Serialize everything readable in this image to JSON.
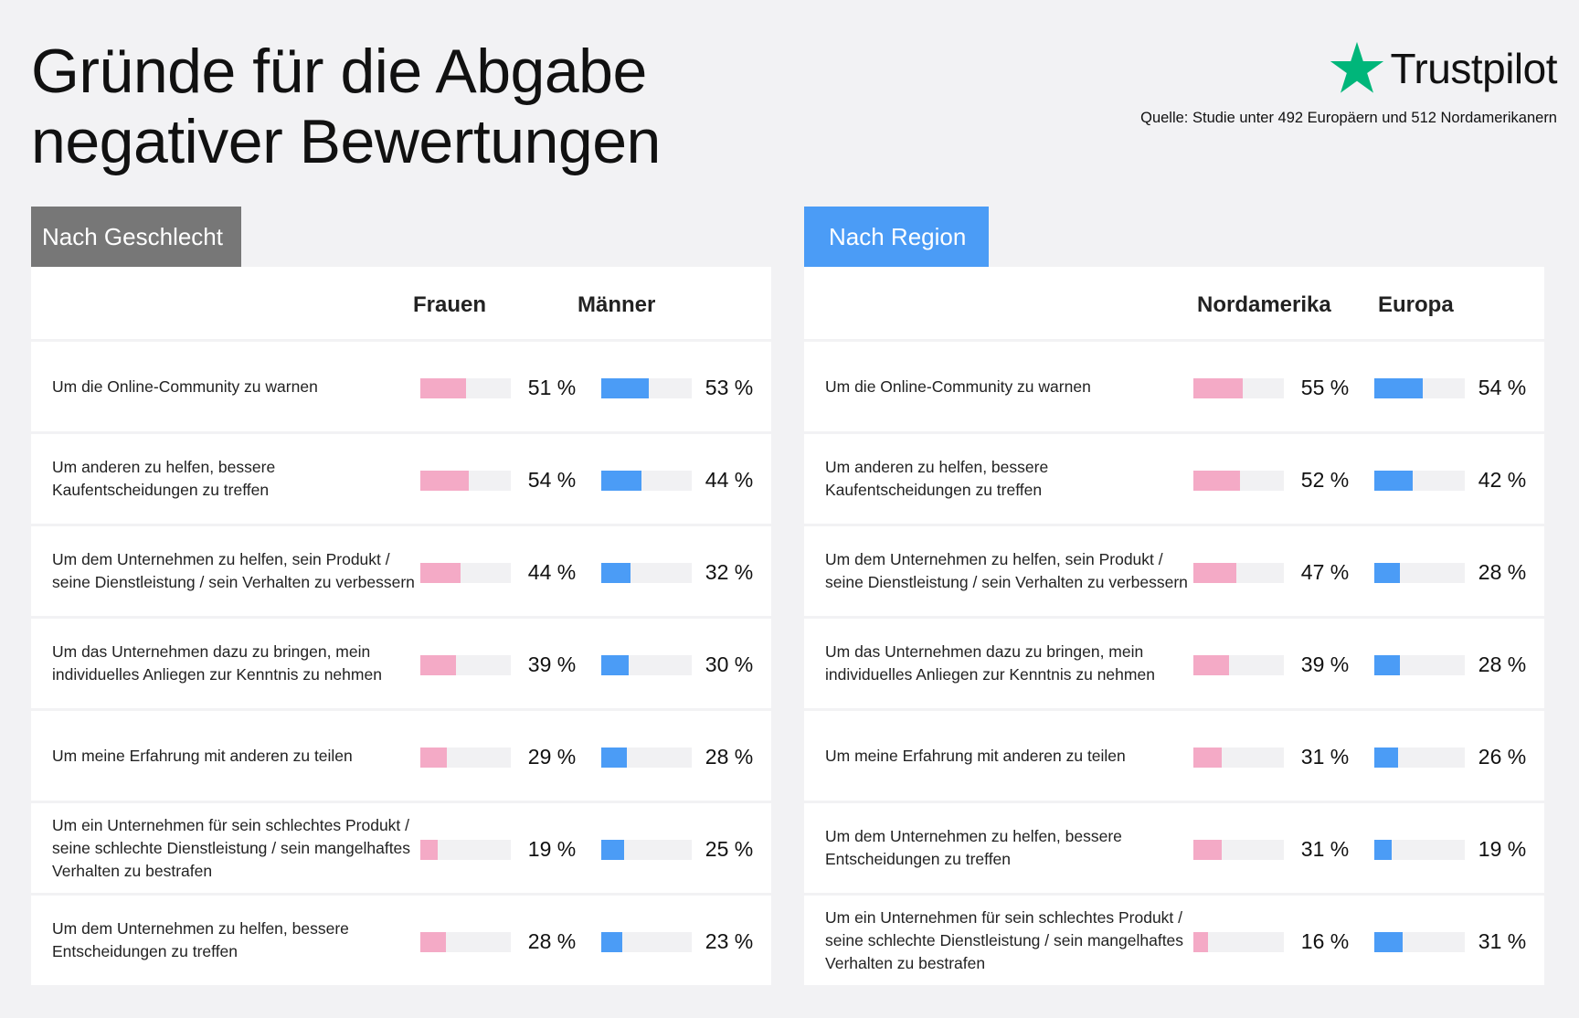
{
  "title": {
    "line1": "Gründe für die Abgabe",
    "line2": "negativer Bewertungen"
  },
  "brand": {
    "name": "Trustpilot",
    "star_color": "#00b67a",
    "source": "Quelle: Studie unter 492 Europäern und 512 Nordamerikanern"
  },
  "colors": {
    "pink": "#f4aac6",
    "blue": "#4b9cf6",
    "gray_tag": "#777777",
    "track": "#f1f1f3"
  },
  "chart_data": [
    {
      "type": "bar",
      "title": "Nach Geschlecht",
      "series": [
        {
          "name": "Frauen",
          "color": "pink",
          "values": [
            51,
            54,
            44,
            39,
            29,
            19,
            28
          ]
        },
        {
          "name": "Männer",
          "color": "blue",
          "values": [
            53,
            44,
            32,
            30,
            28,
            25,
            23
          ]
        }
      ],
      "unit": "%",
      "ylim": [
        0,
        100
      ],
      "categories": [
        "Um die Online-Community zu warnen",
        "Um anderen zu helfen, bessere Kaufentscheidungen zu treffen",
        "Um dem Unternehmen zu helfen, sein Produkt / seine Dienstleistung / sein Verhalten zu verbessern",
        "Um das Unternehmen dazu zu bringen, mein individuelles Anliegen zur Kenntnis zu nehmen",
        "Um meine Erfahrung mit anderen zu teilen",
        "Um ein Unternehmen für sein schlechtes Produkt / seine schlechte Dienstleistung / sein mangelhaftes Verhalten zu bestrafen",
        "Um dem Unternehmen zu helfen, bessere Entscheidungen zu treffen"
      ],
      "pct_labels": [
        [
          "51 %",
          "53 %"
        ],
        [
          "54 %",
          "44 %"
        ],
        [
          "44 %",
          "32 %"
        ],
        [
          "39 %",
          "30 %"
        ],
        [
          "29 %",
          "28 %"
        ],
        [
          "19 %",
          "25 %"
        ],
        [
          "28 %",
          "23 %"
        ]
      ]
    },
    {
      "type": "bar",
      "title": "Nach Region",
      "series": [
        {
          "name": "Nordamerika",
          "color": "pink",
          "values": [
            55,
            52,
            47,
            39,
            31,
            31,
            16
          ]
        },
        {
          "name": "Europa",
          "color": "blue",
          "values": [
            54,
            42,
            28,
            28,
            26,
            19,
            31
          ]
        }
      ],
      "unit": "%",
      "ylim": [
        0,
        100
      ],
      "categories": [
        "Um die Online-Community zu warnen",
        "Um anderen zu helfen, bessere Kaufentscheidungen zu treffen",
        "Um dem Unternehmen zu helfen, sein Produkt / seine Dienstleistung / sein Verhalten zu verbessern",
        "Um das Unternehmen dazu zu bringen, mein individuelles Anliegen zur Kenntnis zu nehmen",
        "Um meine Erfahrung mit anderen zu teilen",
        "Um dem Unternehmen zu helfen, bessere Entscheidungen zu treffen",
        "Um ein Unternehmen für sein schlechtes Produkt / seine schlechte Dienstleistung / sein mangelhaftes Verhalten zu bestrafen"
      ],
      "pct_labels": [
        [
          "55 %",
          "54 %"
        ],
        [
          "52 %",
          "42 %"
        ],
        [
          "47 %",
          "28 %"
        ],
        [
          "39 %",
          "28 %"
        ],
        [
          "31 %",
          "26 %"
        ],
        [
          "31 %",
          "19 %"
        ],
        [
          "16 %",
          "31 %"
        ]
      ]
    }
  ]
}
